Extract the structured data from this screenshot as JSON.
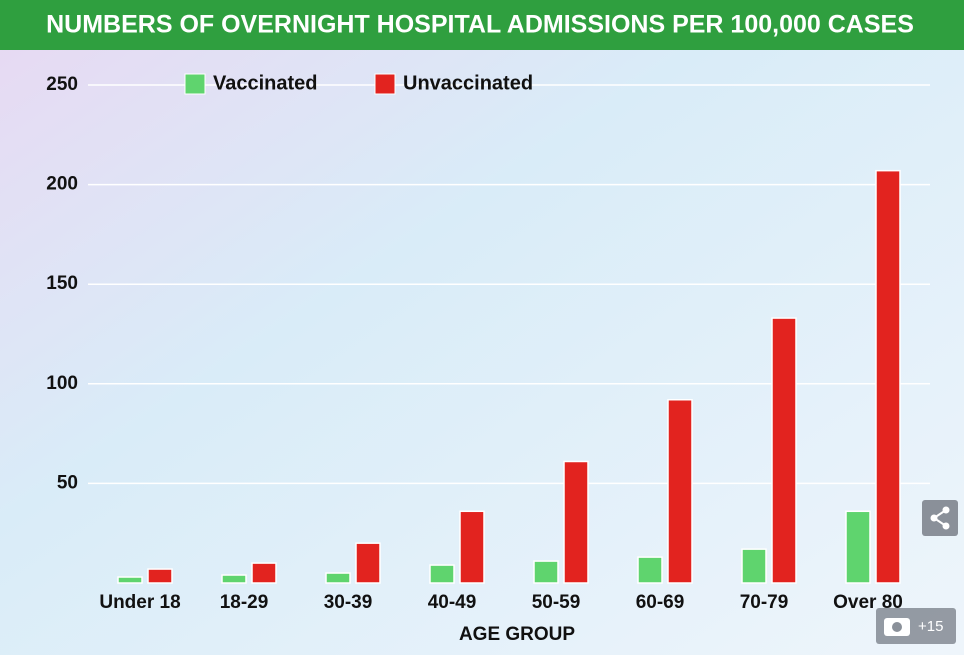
{
  "chart_data": {
    "type": "bar",
    "title": "NUMBERS OF OVERNIGHT HOSPITAL ADMISSIONS PER 100,000 CASES",
    "xlabel": "AGE GROUP",
    "categories": [
      "Under 18",
      "18-29",
      "30-39",
      "40-49",
      "50-59",
      "60-69",
      "70-79",
      "Over 80"
    ],
    "series": [
      {
        "name": "Vaccinated",
        "color": "#5fd46e",
        "values": [
          3,
          4,
          5,
          9,
          11,
          13,
          17,
          36
        ]
      },
      {
        "name": "Unvaccinated",
        "color": "#e2231f",
        "values": [
          7,
          10,
          20,
          36,
          61,
          92,
          133,
          207
        ]
      }
    ],
    "ylim": [
      0,
      250
    ],
    "yticks": [
      50,
      100,
      150,
      200,
      250
    ],
    "grid": true,
    "legend": "top"
  },
  "photo_count": "+15"
}
